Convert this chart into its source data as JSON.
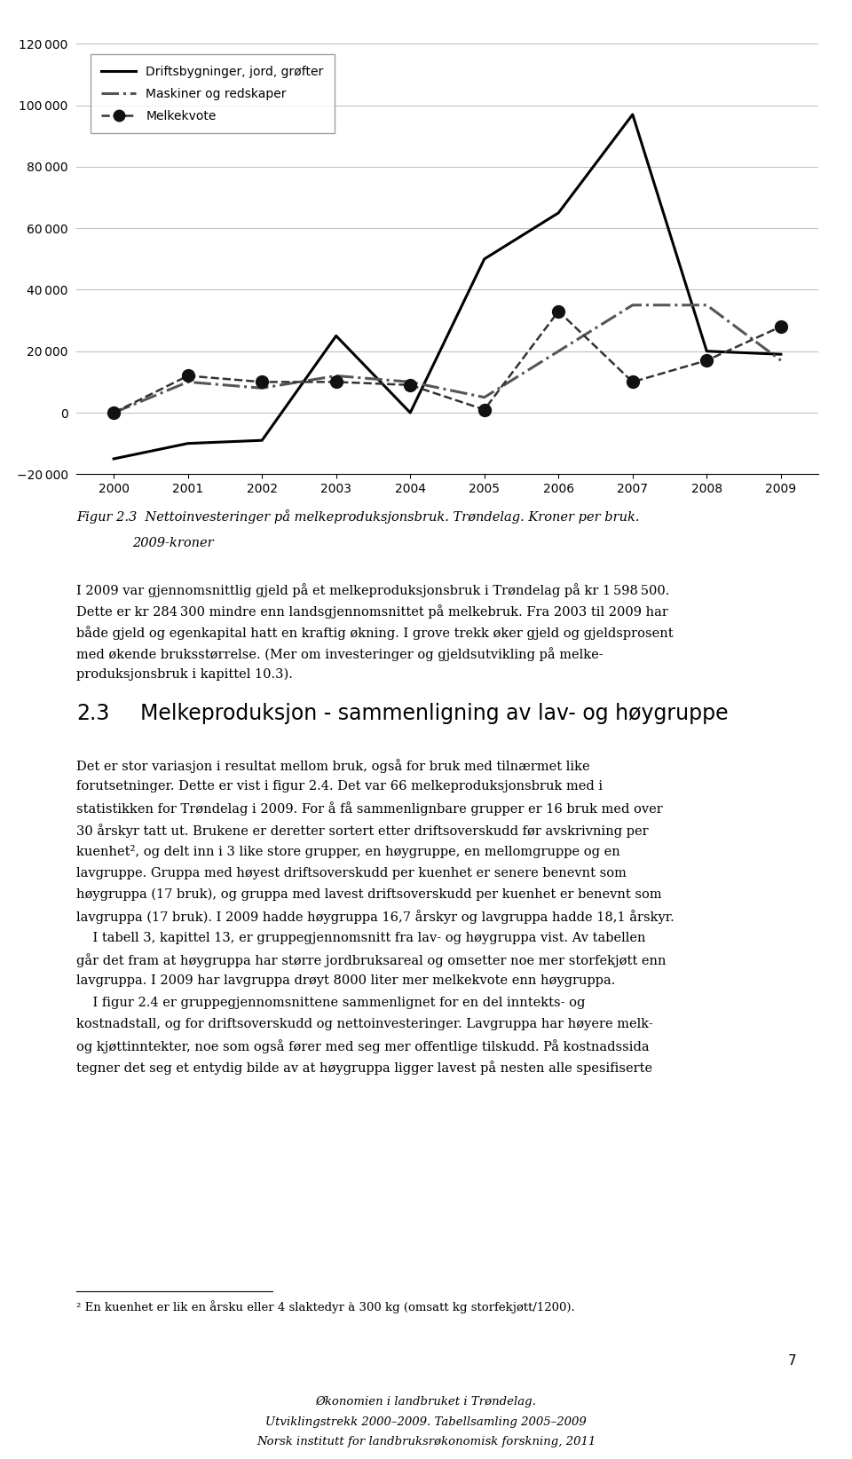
{
  "years": [
    2000,
    2001,
    2002,
    2003,
    2004,
    2005,
    2006,
    2007,
    2008,
    2009
  ],
  "driftsbygninger": [
    -15000,
    -10000,
    -9000,
    25000,
    0,
    50000,
    65000,
    97000,
    20000,
    19000
  ],
  "maskiner": [
    0,
    10000,
    8000,
    12000,
    10000,
    5000,
    20000,
    35000,
    35000,
    17000
  ],
  "melkekvote": [
    0,
    12000,
    10000,
    10000,
    9000,
    1000,
    33000,
    10000,
    17000,
    28000
  ],
  "ylim_min": -20000,
  "ylim_max": 120000,
  "yticks": [
    -20000,
    0,
    20000,
    40000,
    60000,
    80000,
    100000,
    120000
  ],
  "fig_caption_line1": "Figur 2.3  Nettoinvesteringer på melkeproduksjonsbruk. Trøndelag. Kroner per bruk.",
  "fig_caption_line2": "2009-kroner",
  "legend_labels": [
    "Driftsbygninger, jord, grøfter",
    "Maskiner og redskaper",
    "Melkekvote"
  ],
  "footnote": "² En kuenhet er lik en årsku eller 4 slaktedyr à 300 kg (omsatt kg storfekjøtt/1200).",
  "page_number": "7",
  "footer_line1": "Økonomien i landbruket i Trøndelag.",
  "footer_line2": "Utviklingstrekk 2000–2009. Tabellsamling 2005–2009",
  "footer_line3": "Norsk institutt for landbruksrøkonomisk forskning, 2011",
  "background_color": "#ffffff",
  "text_color": "#000000"
}
